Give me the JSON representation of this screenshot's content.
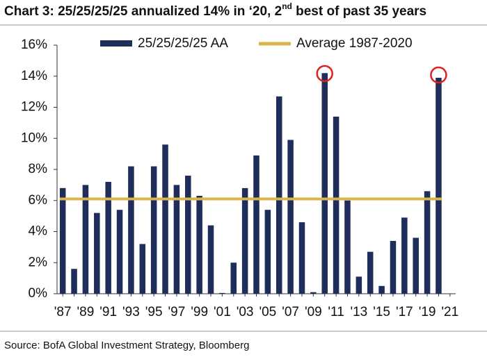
{
  "chart_data": {
    "type": "bar",
    "title": [
      "Chart 3: 25/25/25/25 annualized 14% in ‘20, 2",
      "nd",
      " best of past 35 years"
    ],
    "source": "Source: BofA Global Investment Strategy, Bloomberg",
    "categories": [
      "'87",
      null,
      "'89",
      null,
      "'91",
      null,
      "'93",
      null,
      "'95",
      null,
      "'97",
      null,
      "'99",
      null,
      "'01",
      null,
      "'03",
      null,
      "'05",
      null,
      "'07",
      null,
      "'09",
      null,
      "'11",
      null,
      "'13",
      null,
      "'15",
      null,
      "'17",
      null,
      "'19",
      null,
      "'21"
    ],
    "series": [
      {
        "name": "25/25/25/25 AA",
        "color": "#1f2d5a",
        "values": [
          6.8,
          1.6,
          7.0,
          5.2,
          7.2,
          5.4,
          8.2,
          3.2,
          8.2,
          9.6,
          7.0,
          7.6,
          6.3,
          4.4,
          0.05,
          2.0,
          6.8,
          8.9,
          5.4,
          12.7,
          9.9,
          4.6,
          0.1,
          14.2,
          11.4,
          6.0,
          1.1,
          2.7,
          0.5,
          3.4,
          4.9,
          3.6,
          6.6,
          13.9,
          null
        ]
      }
    ],
    "average": {
      "name": "Average 1987-2020",
      "value": 6.1,
      "color": "#d9b54a"
    },
    "ylim": [
      0,
      16
    ],
    "yticks": [
      {
        "value": 0,
        "label": "0%"
      },
      {
        "value": 2,
        "label": "2%"
      },
      {
        "value": 4,
        "label": "4%"
      },
      {
        "value": 6,
        "label": "6%"
      },
      {
        "value": 8,
        "label": "8%"
      },
      {
        "value": 10,
        "label": "10%"
      },
      {
        "value": 12,
        "label": "12%"
      },
      {
        "value": 14,
        "label": "14%"
      },
      {
        "value": 16,
        "label": "16%"
      }
    ]
  }
}
